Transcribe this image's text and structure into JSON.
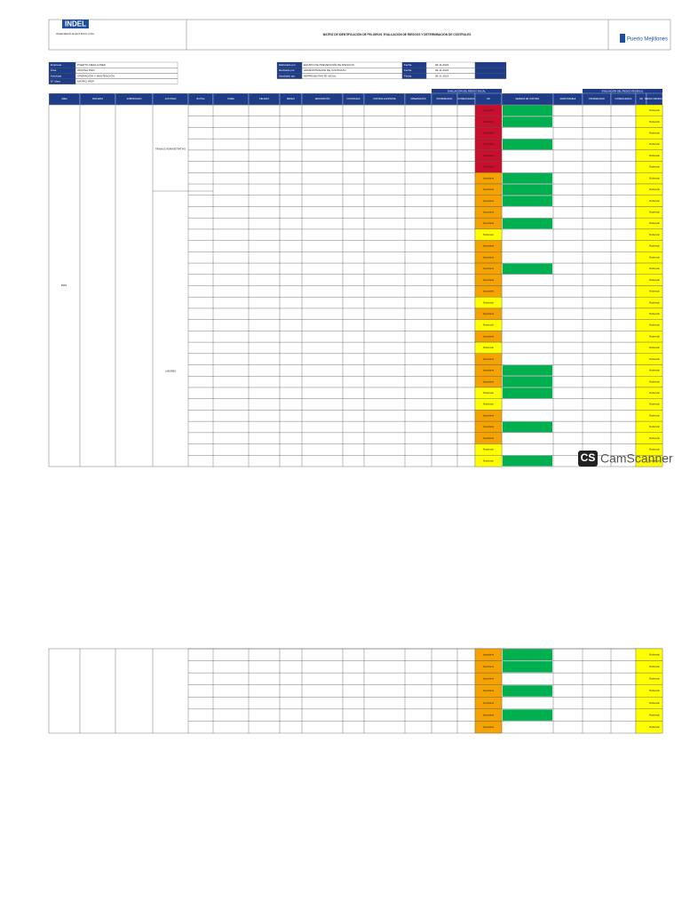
{
  "header": {
    "logo": "INDEL",
    "company": "INGENIERÍA ELÉCTRICA LTDA.",
    "title": "MATRIZ DE IDENTIFICACIÓN DE PELIGROS, EVALUACIÓN DE RIESGOS Y DETERMINACIÓN DE CONTROLES",
    "client": "Puerto Mejillones"
  },
  "info_left": [
    {
      "label": "Empresa",
      "value": "PUERTO MEJILLONES"
    },
    {
      "label": "Área",
      "value": "OFICINA PMO"
    },
    {
      "label": "Actividad",
      "value": "OPERACIÓN Y MANTENCIÓN"
    },
    {
      "label": "N° Ident.",
      "value": "MATRIZ IPER"
    }
  ],
  "info_right": [
    {
      "label": "Elaborado por",
      "value": "EQUIPO DE PREVENCIÓN DE RIESGOS",
      "date_label": "Fecha",
      "date": "09-11-2023"
    },
    {
      "label": "Revisado por",
      "value": "ADMINISTRADOR DE CONTRATO",
      "date_label": "Fecha",
      "date": "09-11-2023"
    },
    {
      "label": "Aprobado por",
      "value": "REPRESENTANTE LEGAL",
      "date_label": "Fecha",
      "date": "09-11-2023"
    }
  ],
  "columns": [
    "ÁREA",
    "PROCESO",
    "SUBPROCESO",
    "ACTIVIDAD",
    "RUTINA",
    "TAREA",
    "PELIGRO",
    "RIESGO",
    "DESCRIPCIÓN",
    "CONTROLES",
    "CONTROL EXISTENTE",
    "OBSERVACIÓN",
    "PROBABILIDAD",
    "CONSECUENCIA",
    "NR",
    "MEDIDAS DE CONTROL",
    "RESPONSABLE",
    "PROBABILIDAD",
    "CONSECUENCIA",
    "NR",
    "RIESGO RESIDUAL"
  ],
  "group_left": "EVALUACIÓN DEL RIESGO INICIAL",
  "group_right": "EVALUACIÓN DEL RIESGO RESIDUAL",
  "area": "PMO",
  "subprocess": [
    "TRABAJO ADMINISTRATIVO",
    "LABORES"
  ],
  "rows_1": [
    {
      "nr": "Intolerable",
      "color": "#c8102e",
      "control": "#00b050"
    },
    {
      "nr": "Intolerable",
      "color": "#c8102e",
      "control": "#00b050"
    },
    {
      "nr": "Intolerable",
      "color": "#c8102e",
      "control": null
    },
    {
      "nr": "Intolerable",
      "color": "#c8102e",
      "control": "#00b050"
    },
    {
      "nr": "Intolerable",
      "color": "#c8102e",
      "control": null
    },
    {
      "nr": "Intolerable",
      "color": "#c8102e",
      "control": null
    },
    {
      "nr": "Importante",
      "color": "#f4a300",
      "control": "#00b050"
    },
    {
      "nr": "Importante",
      "color": "#f4a300",
      "control": "#00b050"
    },
    {
      "nr": "Importante",
      "color": "#f4a300",
      "control": "#00b050"
    },
    {
      "nr": "Importante",
      "color": "#f4a300",
      "control": null
    },
    {
      "nr": "Importante",
      "color": "#f4a300",
      "control": "#00b050"
    },
    {
      "nr": "Moderado",
      "color": "#ffff00",
      "control": null
    },
    {
      "nr": "Importante",
      "color": "#f4a300",
      "control": null
    },
    {
      "nr": "Importante",
      "color": "#f4a300",
      "control": null
    },
    {
      "nr": "Importante",
      "color": "#f4a300",
      "control": "#00b050"
    },
    {
      "nr": "Importante",
      "color": "#f4a300",
      "control": null
    },
    {
      "nr": "Importante",
      "color": "#f4a300",
      "control": null
    },
    {
      "nr": "Moderado",
      "color": "#ffff00",
      "control": null
    },
    {
      "nr": "Importante",
      "color": "#f4a300",
      "control": null
    },
    {
      "nr": "Moderado",
      "color": "#ffff00",
      "control": null
    },
    {
      "nr": "Importante",
      "color": "#f4a300",
      "control": null
    },
    {
      "nr": "Moderado",
      "color": "#ffff00",
      "control": null
    },
    {
      "nr": "Importante",
      "color": "#f4a300",
      "control": null
    },
    {
      "nr": "Importante",
      "color": "#f4a300",
      "control": "#00b050"
    },
    {
      "nr": "Importante",
      "color": "#f4a300",
      "control": "#00b050"
    },
    {
      "nr": "Moderado",
      "color": "#ffff00",
      "control": "#00b050"
    },
    {
      "nr": "Moderado",
      "color": "#ffff00",
      "control": null
    },
    {
      "nr": "Importante",
      "color": "#f4a300",
      "control": null
    },
    {
      "nr": "Importante",
      "color": "#f4a300",
      "control": "#00b050"
    },
    {
      "nr": "Importante",
      "color": "#f4a300",
      "control": null
    },
    {
      "nr": "Moderado",
      "color": "#ffff00",
      "control": null
    },
    {
      "nr": "Moderado",
      "color": "#ffff00",
      "control": "#00b050"
    }
  ],
  "rows_2": [
    {
      "nr": "Importante",
      "color": "#f4a300",
      "control": "#00b050"
    },
    {
      "nr": "Importante",
      "color": "#f4a300",
      "control": "#00b050"
    },
    {
      "nr": "Importante",
      "color": "#f4a300",
      "control": null
    },
    {
      "nr": "Importante",
      "color": "#f4a300",
      "control": "#00b050"
    },
    {
      "nr": "Importante",
      "color": "#f4a300",
      "control": null
    },
    {
      "nr": "Importante",
      "color": "#f4a300",
      "control": "#00b050"
    },
    {
      "nr": "Importante",
      "color": "#f4a300",
      "control": null
    }
  ],
  "residual": "Moderado",
  "watermark": {
    "badge": "CS",
    "text": "CamScanner"
  }
}
